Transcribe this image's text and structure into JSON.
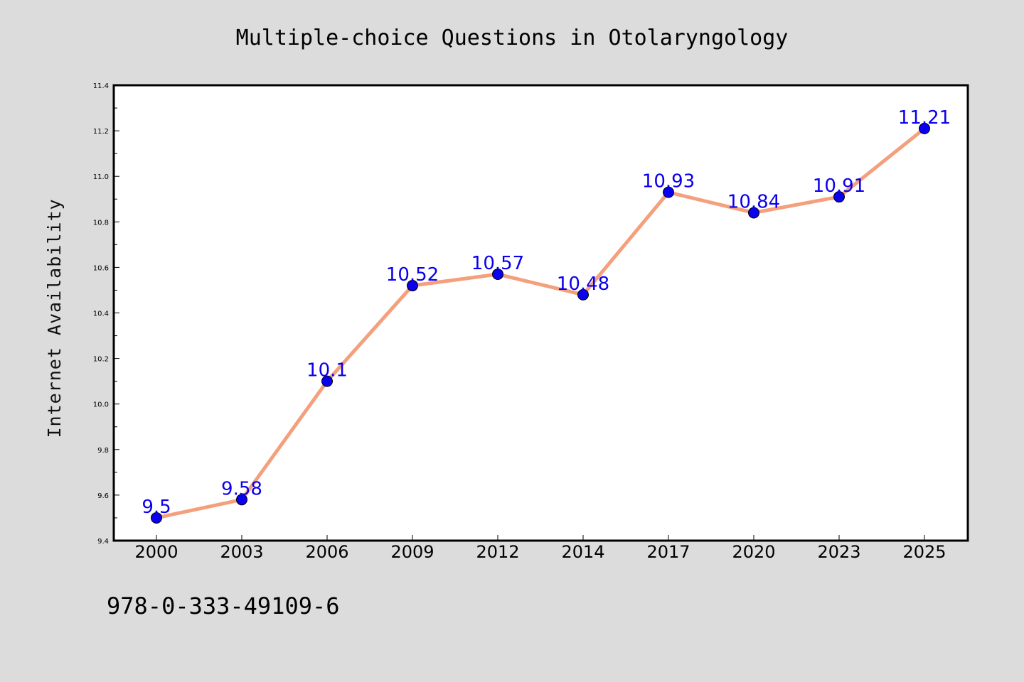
{
  "chart_data": {
    "type": "line",
    "title": "Multiple-choice Questions in Otolaryngology",
    "xlabel": "",
    "ylabel": "Internet Availability",
    "categories": [
      "2000",
      "2003",
      "2006",
      "2009",
      "2012",
      "2014",
      "2017",
      "2020",
      "2023",
      "2025"
    ],
    "series": [
      {
        "values": [
          9.5,
          9.58,
          10.1,
          10.52,
          10.57,
          10.48,
          10.93,
          10.84,
          10.91,
          11.21
        ],
        "labels": [
          "9.5",
          "9.58",
          "10.1",
          "10.52",
          "10.57",
          "10.48",
          "10.93",
          "10.84",
          "10.91",
          "11.21"
        ]
      }
    ],
    "ylim": [
      9.4,
      11.4
    ],
    "yticks": [
      "9.4",
      "9.6",
      "9.8",
      "10.0",
      "10.2",
      "10.4",
      "10.6",
      "10.8",
      "11.0",
      "11.2",
      "11.4"
    ],
    "grid": false,
    "legend": "none",
    "colors": {
      "line": "#f4a07d",
      "marker": "#0a00ee",
      "label": "#0a00ee"
    }
  },
  "footer": {
    "text": "978-0-333-49109-6"
  }
}
